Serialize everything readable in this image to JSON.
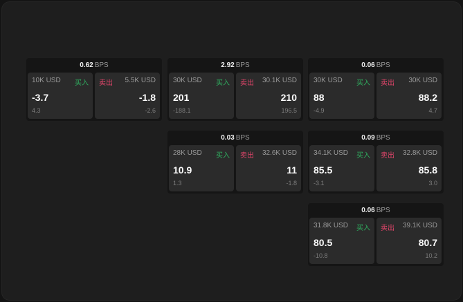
{
  "cards": [
    {
      "bps": "0.62",
      "unit": "BPS",
      "buy_size": "10K USD",
      "buy_label": "买入",
      "buy_price": "-3.7",
      "buy_change": "4.3",
      "sell_label": "卖出",
      "sell_size": "5.5K USD",
      "sell_price": "-1.8",
      "sell_change": "-2.6"
    },
    {
      "bps": "2.92",
      "unit": "BPS",
      "buy_size": "30K USD",
      "buy_label": "买入",
      "buy_price": "201",
      "buy_change": "-188.1",
      "sell_label": "卖出",
      "sell_size": "30.1K USD",
      "sell_price": "210",
      "sell_change": "196.5"
    },
    {
      "bps": "0.06",
      "unit": "BPS",
      "buy_size": "30K USD",
      "buy_label": "买入",
      "buy_price": "88",
      "buy_change": "-4.9",
      "sell_label": "卖出",
      "sell_size": "30K USD",
      "sell_price": "88.2",
      "sell_change": "4.7"
    },
    {
      "bps": "0.03",
      "unit": "BPS",
      "buy_size": "28K USD",
      "buy_label": "买入",
      "buy_price": "10.9",
      "buy_change": "1.3",
      "sell_label": "卖出",
      "sell_size": "32.6K USD",
      "sell_price": "11",
      "sell_change": "-1.8"
    },
    {
      "bps": "0.09",
      "unit": "BPS",
      "buy_size": "34.1K USD",
      "buy_label": "买入",
      "buy_price": "85.5",
      "buy_change": "-3.1",
      "sell_label": "卖出",
      "sell_size": "32.8K USD",
      "sell_price": "85.8",
      "sell_change": "3.0"
    },
    {
      "bps": "0.06",
      "unit": "BPS",
      "buy_size": "31.8K USD",
      "buy_label": "买入",
      "buy_price": "80.5",
      "buy_change": "-10.8",
      "sell_label": "卖出",
      "sell_size": "39.1K USD",
      "sell_price": "80.7",
      "sell_change": "10.2"
    }
  ],
  "colors": {
    "buy": "#2fae5f",
    "sell": "#e0456a",
    "background": "#1e1e1e",
    "panel": "#2b2b2b"
  }
}
